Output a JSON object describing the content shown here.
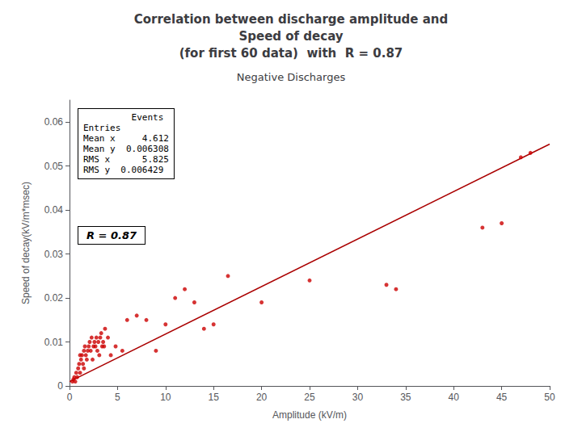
{
  "chart_data": {
    "type": "scatter",
    "title": "Correlation between discharge amplitude and\nSpeed of decay\n(for first 60 data)  with  R = 0.87",
    "subtitle": "Negative Discharges",
    "xlabel": "Amplitude (kV/m)",
    "ylabel": "Speed of decay(kV/m*msec)",
    "xlim": [
      0,
      50
    ],
    "ylim": [
      0,
      0.065
    ],
    "xticks": [
      0,
      5,
      10,
      15,
      20,
      25,
      30,
      35,
      40,
      45,
      50
    ],
    "yticks": [
      0,
      0.01,
      0.02,
      0.03,
      0.04,
      0.05,
      0.06
    ],
    "grid": false,
    "annotations": [
      "         Events\nEntries\nMean x     4.612\nMean y  0.006308\nRMS x      5.825\nRMS y  0.006429",
      "R = 0.87"
    ],
    "series": [
      {
        "type": "scatter",
        "color": "#cc0000",
        "x": [
          0.3,
          0.4,
          0.5,
          0.6,
          0.7,
          0.8,
          0.9,
          1.0,
          1.1,
          1.1,
          1.2,
          1.3,
          1.4,
          1.5,
          1.5,
          1.6,
          1.7,
          1.8,
          1.9,
          2.0,
          2.1,
          2.2,
          2.3,
          2.4,
          2.5,
          2.6,
          2.7,
          2.8,
          2.9,
          3.0,
          3.1,
          3.2,
          3.3,
          3.4,
          3.5,
          3.6,
          3.7,
          4.0,
          4.3,
          4.8,
          5.5,
          6.0,
          7.0,
          8.0,
          9.0,
          10.0,
          11.0,
          12.0,
          13.0,
          14.0,
          15.0,
          16.5,
          20.0,
          25.0,
          33.0,
          34.0,
          43.0,
          45.0,
          47.0,
          48.0
        ],
        "values": [
          0.001,
          0.0015,
          0.002,
          0.001,
          0.003,
          0.002,
          0.004,
          0.005,
          0.003,
          0.007,
          0.006,
          0.007,
          0.005,
          0.008,
          0.004,
          0.009,
          0.007,
          0.006,
          0.008,
          0.009,
          0.01,
          0.008,
          0.011,
          0.006,
          0.009,
          0.01,
          0.009,
          0.011,
          0.008,
          0.01,
          0.007,
          0.011,
          0.012,
          0.009,
          0.01,
          0.009,
          0.013,
          0.011,
          0.007,
          0.009,
          0.008,
          0.015,
          0.016,
          0.015,
          0.008,
          0.014,
          0.02,
          0.022,
          0.019,
          0.013,
          0.014,
          0.025,
          0.019,
          0.024,
          0.023,
          0.022,
          0.036,
          0.037,
          0.052,
          0.053
        ]
      },
      {
        "type": "line",
        "color": "#aa0000",
        "x": [
          0,
          50
        ],
        "values": [
          0.001,
          0.055
        ]
      }
    ]
  }
}
